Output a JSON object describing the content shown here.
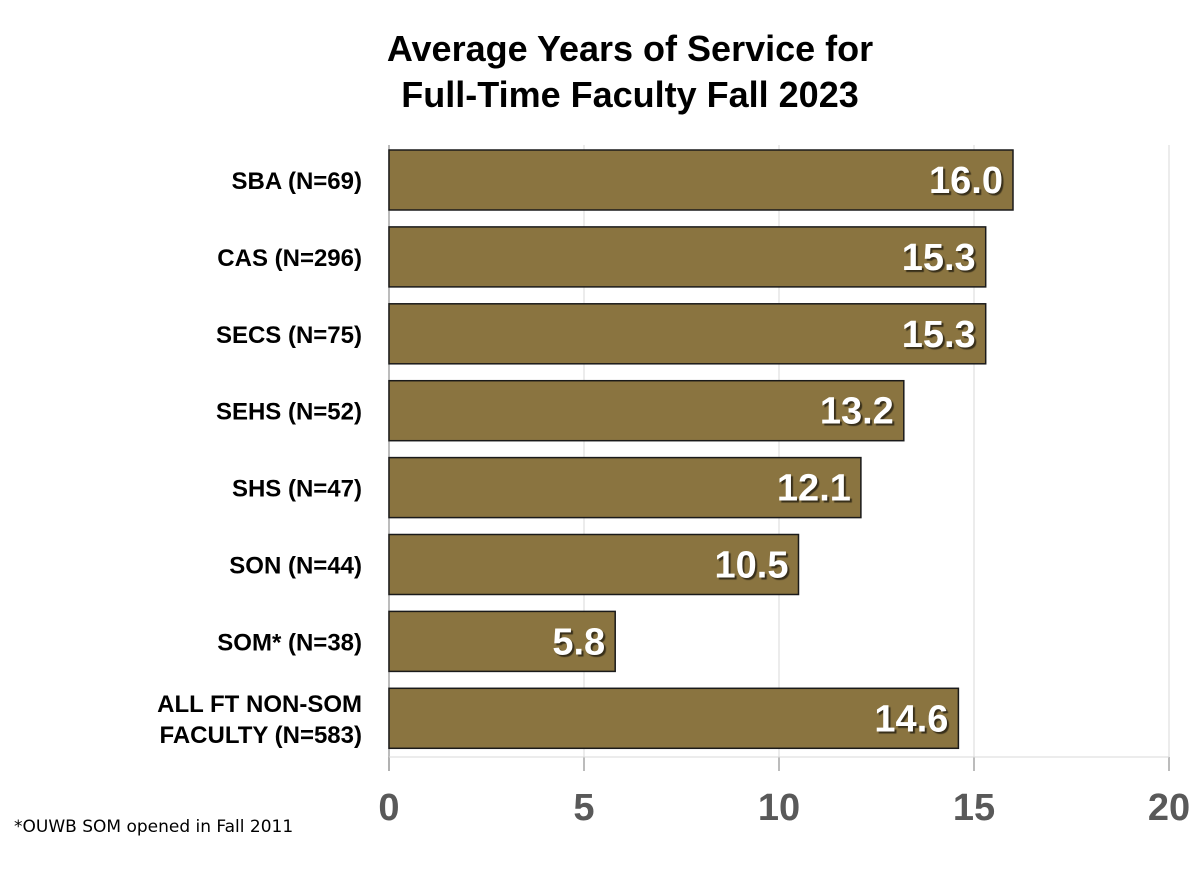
{
  "chart_data": {
    "type": "bar",
    "orientation": "horizontal",
    "title": "Average Years of Service for Full-Time Faculty Fall 2023",
    "title_lines": [
      "Average Years of Service for",
      "Full-Time Faculty Fall 2023"
    ],
    "categories": [
      [
        "SBA (N=69)"
      ],
      [
        "CAS (N=296)"
      ],
      [
        "SECS (N=75)"
      ],
      [
        "SEHS (N=52)"
      ],
      [
        "SHS (N=47)"
      ],
      [
        "SON (N=44)"
      ],
      [
        "SOM* (N=38)"
      ],
      [
        "ALL FT NON-SOM",
        "FACULTY (N=583)"
      ]
    ],
    "values": [
      16.0,
      15.3,
      15.3,
      13.2,
      12.1,
      10.5,
      5.8,
      14.6
    ],
    "value_labels": [
      "16.0",
      "15.3",
      "15.3",
      "13.2",
      "12.1",
      "10.5",
      "5.8",
      "14.6"
    ],
    "xlim": [
      0,
      20
    ],
    "xticks": [
      "0",
      "5",
      "10",
      "15",
      "20"
    ],
    "xlabel": "",
    "ylabel": "",
    "grid": true,
    "bar_color": "#8A7440",
    "footnote": "*OUWB SOM opened in Fall 2011"
  }
}
